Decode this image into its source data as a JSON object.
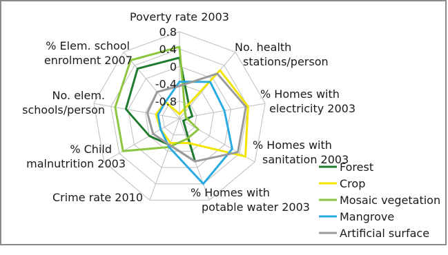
{
  "chart_data": {
    "type": "radar",
    "axes": [
      [
        "Poverty rate 2003"
      ],
      [
        "No. health",
        "stations/person"
      ],
      [
        "% Homes with",
        "electricity 2003"
      ],
      [
        "% Homes with",
        "sanitation 2003"
      ],
      [
        "% Homes with",
        "potable water 2003"
      ],
      [
        "Crime rate 2010"
      ],
      [
        "% Child",
        "malnutrition 2003"
      ],
      [
        "No. elem.",
        "schools/person"
      ],
      [
        "% Elem. school",
        "enrolment 2007"
      ]
    ],
    "rlim": [
      -1.2,
      0.8
    ],
    "ticks": [
      -1.2,
      -0.8,
      -0.4,
      0,
      0.4,
      0.8
    ],
    "tick_labels": [
      "",
      "-0.8",
      "-0.4",
      "0",
      "0.4",
      "0.8"
    ],
    "grid": true,
    "legend_position": "bottom-right",
    "series": [
      {
        "name": "Forest",
        "color": "#1e7b2e",
        "values": [
          0.2,
          -0.85,
          -0.9,
          -1.1,
          -0.15,
          -0.55,
          -0.4,
          0.05,
          0.3
        ]
      },
      {
        "name": "Crop",
        "color": "#f2e600",
        "values": [
          -1.1,
          0.25,
          0.4,
          0.55,
          -0.6,
          -0.6,
          -0.7,
          -0.65,
          -0.7
        ]
      },
      {
        "name": "Mosaic vegetation",
        "color": "#8cc63f",
        "values": [
          0.45,
          -1.0,
          -1.05,
          -0.7,
          -0.7,
          -0.5,
          0.3,
          0.3,
          0.55
        ]
      },
      {
        "name": "Mangrove",
        "color": "#29abe2",
        "values": [
          -0.35,
          -0.1,
          -0.15,
          0.2,
          0.4,
          -0.5,
          -0.7,
          -0.7,
          -0.7
        ]
      },
      {
        "name": "Artificial surface",
        "color": "#9a9a9a",
        "values": [
          -0.45,
          0.15,
          0.35,
          0.35,
          -0.15,
          -0.55,
          -0.5,
          -0.45,
          -0.4
        ]
      }
    ]
  }
}
